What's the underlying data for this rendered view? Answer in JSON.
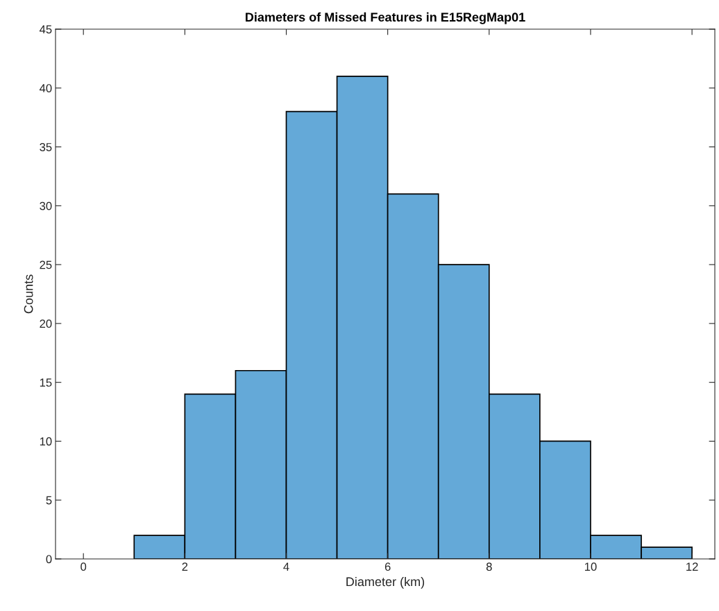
{
  "chart_data": {
    "type": "histogram",
    "title": "Diameters of Missed Features in E15RegMap01",
    "xlabel": "Diameter (km)",
    "ylabel": "Counts",
    "bins": [
      1,
      2,
      3,
      4,
      5,
      6,
      7,
      8,
      9,
      10,
      11,
      12
    ],
    "values": [
      2,
      14,
      16,
      38,
      41,
      31,
      25,
      14,
      10,
      2,
      1
    ],
    "color": "#64a9d8",
    "xlim": [
      -0.55,
      12.45
    ],
    "xticks": [
      0,
      2,
      4,
      6,
      8,
      10,
      12
    ],
    "ylim": [
      0,
      45
    ],
    "yticks": [
      0,
      5,
      10,
      15,
      20,
      25,
      30,
      35,
      40,
      45
    ],
    "grid": false
  }
}
